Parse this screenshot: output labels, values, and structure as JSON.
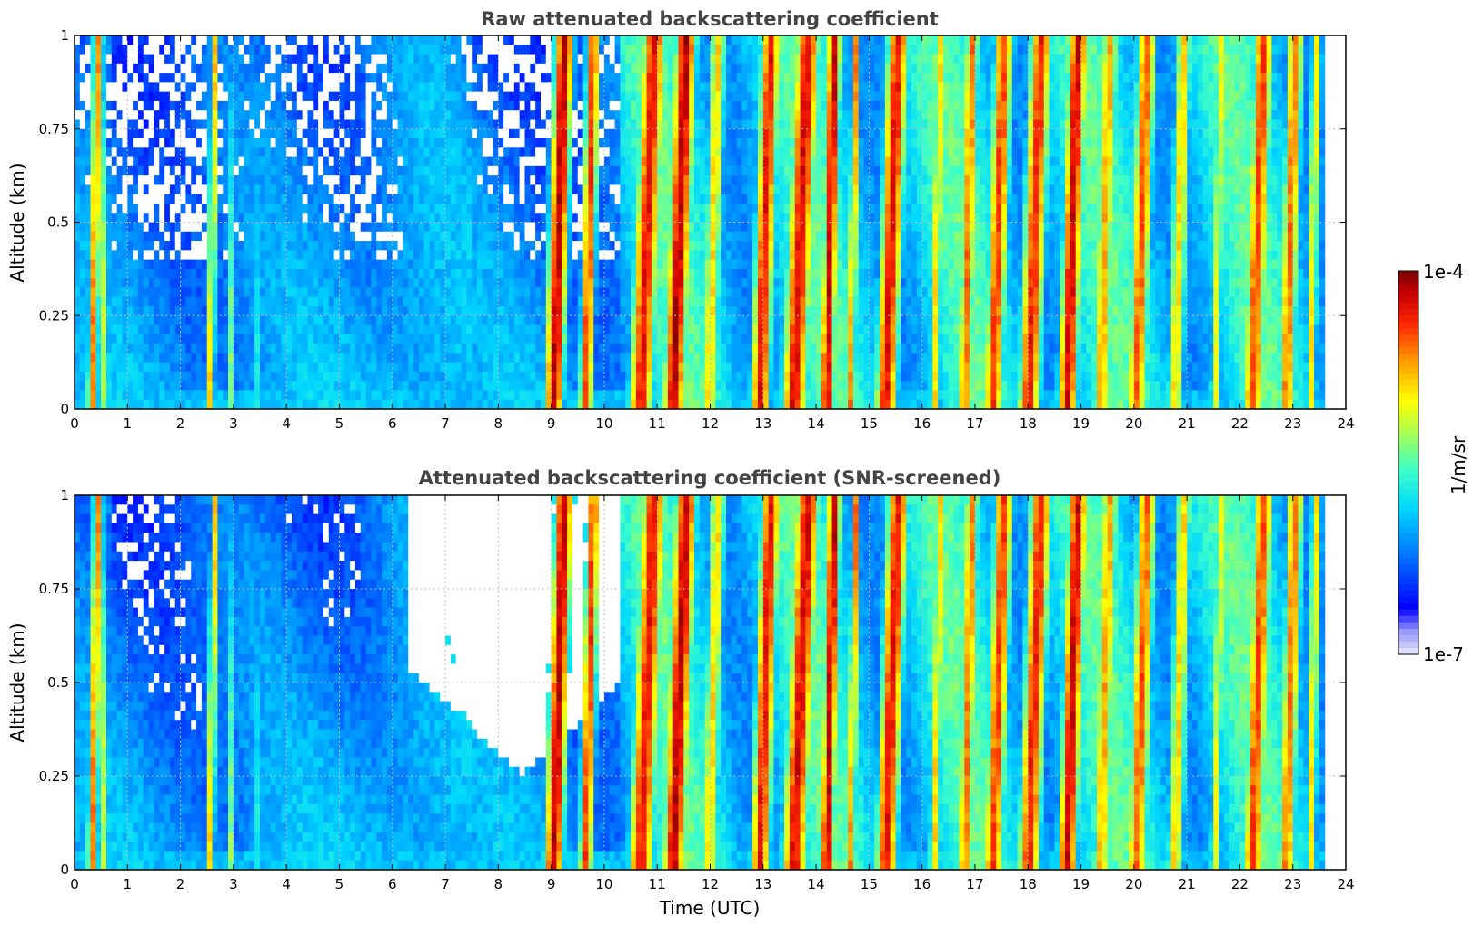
{
  "chart_data": [
    {
      "type": "heatmap",
      "title": "Raw attenuated backscattering coefficient",
      "xlabel": "",
      "ylabel": "Altitude (km)",
      "xlim": [
        0,
        24
      ],
      "ylim": [
        0,
        1
      ],
      "xticks": [
        "0",
        "1",
        "2",
        "3",
        "4",
        "5",
        "6",
        "7",
        "8",
        "9",
        "10",
        "11",
        "12",
        "13",
        "14",
        "15",
        "16",
        "17",
        "18",
        "19",
        "20",
        "21",
        "22",
        "23",
        "24"
      ],
      "yticks": [
        "0",
        "0.25",
        "0.5",
        "0.75",
        "1"
      ],
      "grid": true,
      "data_end_hour": 23.6,
      "screened": false
    },
    {
      "type": "heatmap",
      "title": "Attenuated backscattering coefficient (SNR-screened)",
      "xlabel": "Time (UTC)",
      "ylabel": "Altitude (km)",
      "xlim": [
        0,
        24
      ],
      "ylim": [
        0,
        1
      ],
      "xticks": [
        "0",
        "1",
        "2",
        "3",
        "4",
        "5",
        "6",
        "7",
        "8",
        "9",
        "10",
        "11",
        "12",
        "13",
        "14",
        "15",
        "16",
        "17",
        "18",
        "19",
        "20",
        "21",
        "22",
        "23",
        "24"
      ],
      "yticks": [
        "0",
        "0.25",
        "0.5",
        "0.75",
        "1"
      ],
      "grid": true,
      "data_end_hour": 23.6,
      "screened": true
    }
  ],
  "colorbar": {
    "label": "1/m/sr",
    "max_label": "1e-4",
    "min_label": "1e-7",
    "scale": "log",
    "colors": [
      "#e8e8ff",
      "#9999ff",
      "#0000ff",
      "#0066ff",
      "#00ccff",
      "#33ffcc",
      "#99ff66",
      "#ffff00",
      "#ff9900",
      "#ff3300",
      "#cc0000",
      "#800000"
    ]
  }
}
